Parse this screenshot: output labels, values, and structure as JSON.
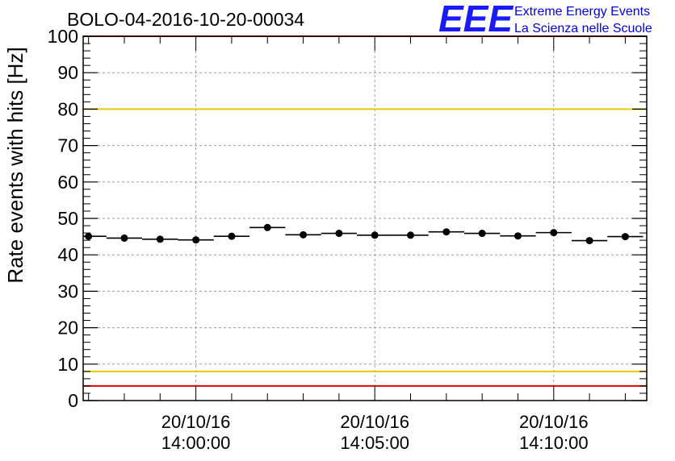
{
  "chart_data": {
    "type": "scatter",
    "title": "BOLO-04-2016-10-20-00034",
    "ylabel": "Rate events with hits [Hz]",
    "xlabel": "",
    "ylim": [
      0,
      100
    ],
    "yticks": [
      0,
      10,
      20,
      30,
      40,
      50,
      60,
      70,
      80,
      90,
      100
    ],
    "grid": true,
    "x_unit": "time",
    "x_tick_labels": [
      {
        "t": "2016-10-20T14:00:00",
        "date": "20/10/16",
        "time": "14:00:00"
      },
      {
        "t": "2016-10-20T14:05:00",
        "date": "20/10/16",
        "time": "14:05:00"
      },
      {
        "t": "2016-10-20T14:10:00",
        "date": "20/10/16",
        "time": "14:10:00"
      }
    ],
    "x_range": [
      "2016-10-20T13:56:51",
      "2016-10-20T14:12:36"
    ],
    "series": [
      {
        "bin_width_s": 60,
        "points": [
          {
            "t": "2016-10-20T13:57:00",
            "y": 45.1
          },
          {
            "t": "2016-10-20T13:58:00",
            "y": 44.6
          },
          {
            "t": "2016-10-20T13:59:00",
            "y": 44.3
          },
          {
            "t": "2016-10-20T14:00:00",
            "y": 44.1
          },
          {
            "t": "2016-10-20T14:01:00",
            "y": 45.1
          },
          {
            "t": "2016-10-20T14:02:00",
            "y": 47.5
          },
          {
            "t": "2016-10-20T14:03:00",
            "y": 45.5
          },
          {
            "t": "2016-10-20T14:04:00",
            "y": 45.9
          },
          {
            "t": "2016-10-20T14:05:00",
            "y": 45.4
          },
          {
            "t": "2016-10-20T14:06:00",
            "y": 45.4
          },
          {
            "t": "2016-10-20T14:07:00",
            "y": 46.3
          },
          {
            "t": "2016-10-20T14:08:00",
            "y": 45.9
          },
          {
            "t": "2016-10-20T14:09:00",
            "y": 45.2
          },
          {
            "t": "2016-10-20T14:10:00",
            "y": 46.1
          },
          {
            "t": "2016-10-20T14:11:00",
            "y": 43.9
          },
          {
            "t": "2016-10-20T14:12:00",
            "y": 45.0
          }
        ]
      }
    ],
    "reference_lines": [
      {
        "y": 80,
        "color": "#e8c800"
      },
      {
        "y": 8,
        "color": "#e8c800"
      },
      {
        "y": 4,
        "color": "#e00000"
      },
      {
        "y": 100,
        "color": "#e00000"
      }
    ]
  },
  "logo": {
    "mark": "EEE",
    "line1": "Extreme Energy Events",
    "line2": "La Scienza nelle Scuole",
    "color": "#1a1aff"
  }
}
